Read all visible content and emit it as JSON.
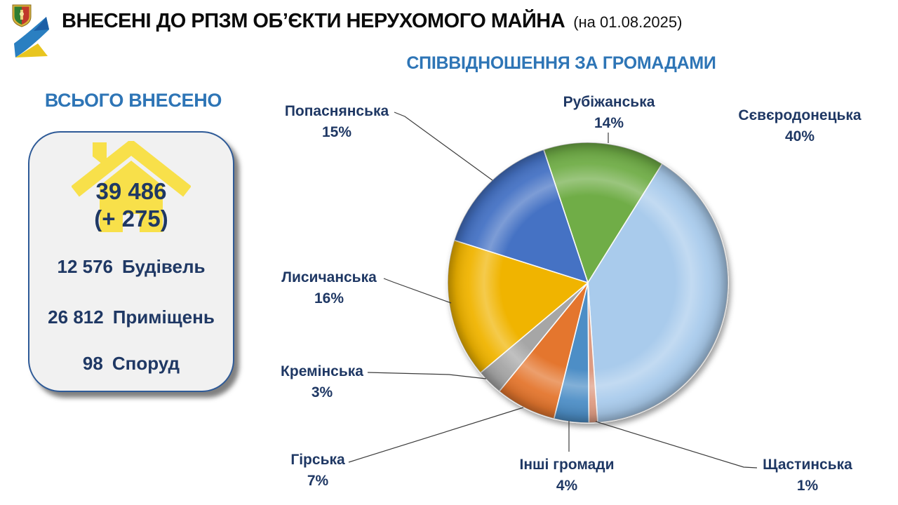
{
  "header": {
    "title": "ВНЕСЕНІ ДО РПЗМ ОБ’ЄКТИ НЕРУХОМОГО МАЙНА",
    "date_suffix": "(на 01.08.2025)"
  },
  "totals": {
    "heading": "ВСЬОГО ВНЕСЕНО",
    "total": "39 486",
    "delta": "(+ 275)",
    "items": [
      {
        "value": "12 576",
        "label": "Будівель"
      },
      {
        "value": "26 812",
        "label": "Приміщень"
      },
      {
        "value": "98",
        "label": "Споруд"
      }
    ]
  },
  "chart_data": {
    "type": "pie",
    "title": "СПІВВІДНОШЕННЯ ЗА ГРОМАДАМИ",
    "start_angle_deg": -18.4,
    "direction": "clockwise",
    "labels_show_pct": true,
    "slices": [
      {
        "label": "Рубіжанська",
        "value": 14,
        "color": "#6fad47"
      },
      {
        "label": "Сєвєродонецька",
        "value": 40,
        "color": "#a9cbec"
      },
      {
        "label": "Щастинська",
        "value": 1,
        "color": "#dd9b82"
      },
      {
        "label": "Інші громади",
        "value": 4,
        "color": "#4e8ec6"
      },
      {
        "label": "Гірська",
        "value": 7,
        "color": "#e4762d"
      },
      {
        "label": "Кремінська",
        "value": 3,
        "color": "#a6a6a6"
      },
      {
        "label": "Лисичанська",
        "value": 16,
        "color": "#f0b400"
      },
      {
        "label": "Попаснянська",
        "value": 15,
        "color": "#4472c4"
      }
    ]
  },
  "colors": {
    "accent_blue": "#2e75b6",
    "text_navy": "#1f3864",
    "house_yellow": "#f8e04a",
    "card_bg": "#f1f1f1"
  }
}
